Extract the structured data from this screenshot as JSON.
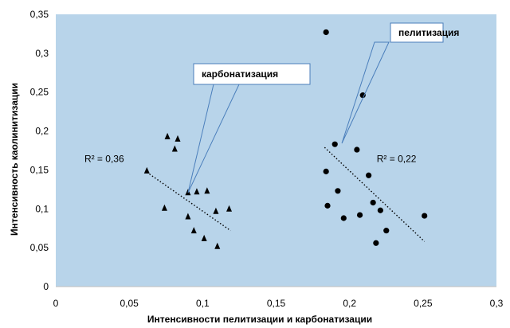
{
  "chart_data": {
    "type": "scatter",
    "xlabel": "Интенсивности пелитизации и карбонатизации",
    "ylabel": "Интенсивность каолинитизации",
    "xlim": [
      0,
      0.3
    ],
    "ylim": [
      0,
      0.35
    ],
    "x_ticks": [
      "0",
      "0,05",
      "0,1",
      "0,15",
      "0,2",
      "0,25",
      "0,3"
    ],
    "y_ticks": [
      "0",
      "0,05",
      "0,1",
      "0,15",
      "0,2",
      "0,25",
      "0,3",
      "0,35"
    ],
    "plot_background": "#b8d4ea",
    "grid": false,
    "series": [
      {
        "marker": "triangle",
        "points": [
          [
            0.062,
            0.149
          ],
          [
            0.074,
            0.101
          ],
          [
            0.076,
            0.193
          ],
          [
            0.081,
            0.177
          ],
          [
            0.083,
            0.19
          ],
          [
            0.09,
            0.121
          ],
          [
            0.09,
            0.09
          ],
          [
            0.094,
            0.072
          ],
          [
            0.096,
            0.122
          ],
          [
            0.101,
            0.062
          ],
          [
            0.103,
            0.123
          ],
          [
            0.109,
            0.097
          ],
          [
            0.11,
            0.052
          ],
          [
            0.118,
            0.1
          ]
        ],
        "trendline": {
          "x": [
            0.062,
            0.119
          ],
          "y": [
            0.147,
            0.072
          ],
          "r2_label": "R² = 0,36"
        },
        "callout": "карбонатизация"
      },
      {
        "marker": "circle",
        "points": [
          [
            0.184,
            0.327
          ],
          [
            0.184,
            0.148
          ],
          [
            0.185,
            0.104
          ],
          [
            0.19,
            0.183
          ],
          [
            0.192,
            0.123
          ],
          [
            0.196,
            0.088
          ],
          [
            0.205,
            0.176
          ],
          [
            0.207,
            0.092
          ],
          [
            0.209,
            0.246
          ],
          [
            0.213,
            0.143
          ],
          [
            0.216,
            0.108
          ],
          [
            0.218,
            0.056
          ],
          [
            0.221,
            0.098
          ],
          [
            0.225,
            0.072
          ],
          [
            0.251,
            0.091
          ]
        ],
        "trendline": {
          "x": [
            0.183,
            0.251
          ],
          "y": [
            0.179,
            0.058
          ],
          "r2_label": "R² = 0,22"
        },
        "callout": "пелитизация"
      }
    ]
  }
}
